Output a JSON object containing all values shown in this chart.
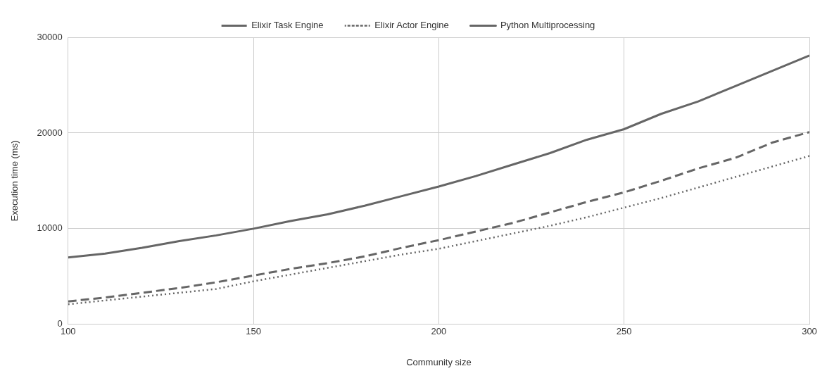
{
  "chart_data": {
    "type": "line",
    "xlabel": "Community size",
    "ylabel": "Execution time (ms)",
    "x": [
      100,
      110,
      120,
      130,
      140,
      150,
      160,
      170,
      180,
      190,
      200,
      210,
      220,
      230,
      240,
      250,
      260,
      270,
      280,
      290,
      300
    ],
    "xlim": [
      100,
      300
    ],
    "xticks": [
      100,
      150,
      200,
      250,
      300
    ],
    "ylim": [
      0,
      30000
    ],
    "yticks": [
      0,
      10000,
      20000,
      30000
    ],
    "grid": true,
    "legend": "top",
    "marker": "none",
    "series": [
      {
        "name": "Elixir Task Engine",
        "color": "#666666",
        "line_style": "dashed",
        "values": [
          2400,
          2800,
          3300,
          3800,
          4400,
          5100,
          5800,
          6400,
          7100,
          8000,
          8800,
          9700,
          10600,
          11700,
          12800,
          13800,
          15000,
          16300,
          17400,
          19000,
          20100
        ]
      },
      {
        "name": "Elixir Actor Engine",
        "color": "#666666",
        "line_style": "dotted",
        "values": [
          2100,
          2500,
          2900,
          3300,
          3700,
          4500,
          5200,
          5900,
          6600,
          7300,
          7900,
          8700,
          9500,
          10300,
          11200,
          12200,
          13200,
          14300,
          15400,
          16500,
          17600
        ]
      },
      {
        "name": "Python Multiprocessing",
        "color": "#666666",
        "line_style": "solid",
        "values": [
          7000,
          7400,
          8000,
          8700,
          9300,
          10000,
          10800,
          11500,
          12400,
          13400,
          14400,
          15500,
          16700,
          17900,
          19300,
          20400,
          22000,
          23300,
          24900,
          26500,
          28100
        ]
      }
    ]
  }
}
